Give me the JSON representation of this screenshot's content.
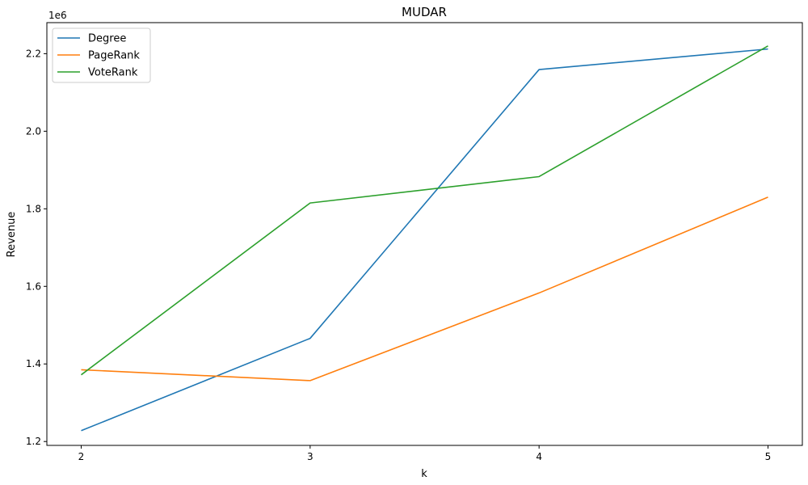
{
  "chart_data": {
    "type": "line",
    "title": "MUDAR",
    "xlabel": "k",
    "ylabel": "Revenue",
    "y_offset_label": "1e6",
    "x": [
      2,
      3,
      4,
      5
    ],
    "x_ticks": [
      "2",
      "3",
      "4",
      "5"
    ],
    "y_ticks": [
      "1.2",
      "1.4",
      "1.6",
      "1.8",
      "2.0",
      "2.2"
    ],
    "y_tick_values": [
      1.2,
      1.4,
      1.6,
      1.8,
      2.0,
      2.2
    ],
    "xlim": [
      1.85,
      5.15
    ],
    "ylim": [
      1.19,
      2.28
    ],
    "grid": false,
    "legend_position": "top-left",
    "series": [
      {
        "name": "Degree",
        "color": "#1f77b4",
        "values": [
          1.228,
          1.466,
          2.159,
          2.212
        ]
      },
      {
        "name": "PageRank",
        "color": "#ff7f0e",
        "values": [
          1.385,
          1.357,
          1.583,
          1.83
        ]
      },
      {
        "name": "VoteRank",
        "color": "#2ca02c",
        "values": [
          1.372,
          1.815,
          1.883,
          2.22
        ]
      }
    ]
  }
}
